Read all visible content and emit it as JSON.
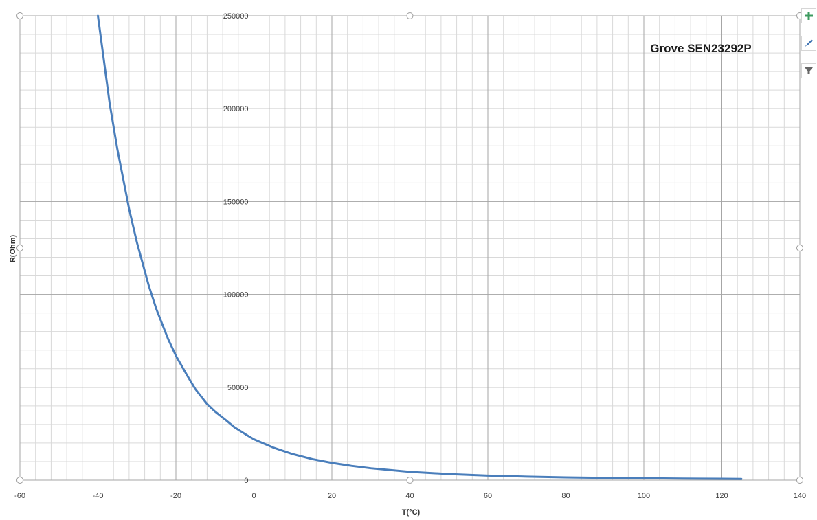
{
  "chart_data": {
    "type": "line",
    "title": "Grove SEN23292P",
    "xlabel": "T(°C)",
    "ylabel": "R(Ohm)",
    "xlim": [
      -60,
      140
    ],
    "ylim": [
      0,
      250000
    ],
    "x_ticks": [
      -60,
      -40,
      -20,
      0,
      20,
      40,
      60,
      80,
      100,
      120,
      140
    ],
    "y_ticks": [
      0,
      50000,
      100000,
      150000,
      200000,
      250000
    ],
    "x_minor_step": 4,
    "y_minor_step": 10000,
    "grid": true,
    "legend": false,
    "series": [
      {
        "color": "#4a7ebb",
        "x": [
          -40,
          -37,
          -35,
          -32,
          -30,
          -27,
          -25,
          -22,
          -20,
          -17,
          -15,
          -12,
          -10,
          -7,
          -5,
          -2,
          0,
          5,
          10,
          15,
          20,
          25,
          30,
          40,
          50,
          60,
          70,
          80,
          90,
          100,
          110,
          120,
          125
        ],
        "y": [
          250000,
          203000,
          178000,
          146000,
          128000,
          105000,
          92000,
          76000,
          67000,
          56000,
          49000,
          41000,
          37000,
          32000,
          28500,
          24500,
          22000,
          17500,
          14000,
          11300,
          9300,
          7700,
          6400,
          4500,
          3300,
          2450,
          1900,
          1500,
          1220,
          1010,
          850,
          720,
          670
        ]
      }
    ]
  },
  "toolbar": {
    "add_icon": "plus-icon",
    "style_icon": "brush-icon",
    "filter_icon": "filter-icon"
  }
}
